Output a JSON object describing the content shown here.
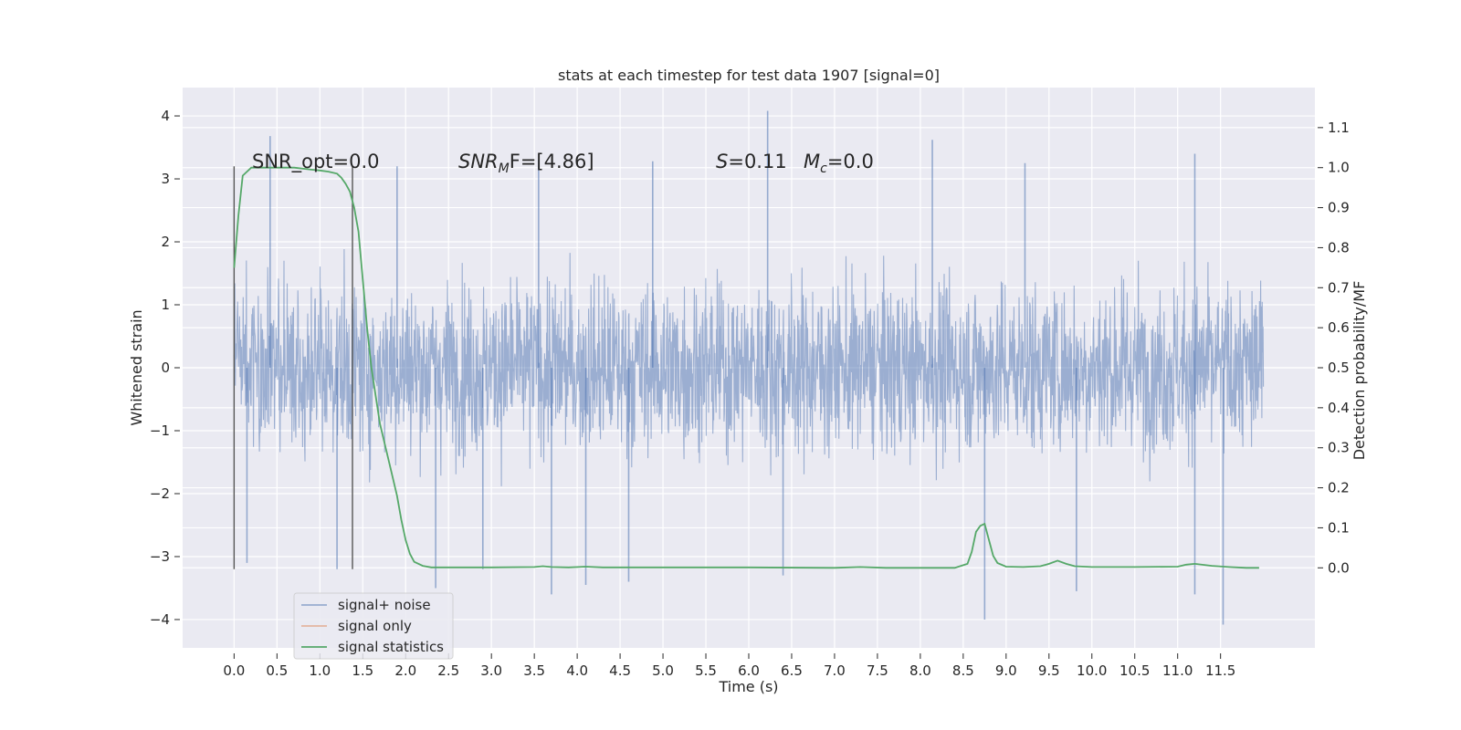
{
  "chart_data": {
    "type": "line",
    "title": "stats at each timestep for test data 1907 [signal=0]",
    "xlabel": "Time (s)",
    "ylabel": "Whitened strain",
    "y2label": "Detection probability/MF",
    "xlim": [
      -0.6,
      12.6
    ],
    "ylim": [
      -4.45,
      4.45
    ],
    "y2lim": [
      -0.2,
      1.2
    ],
    "xticks": [
      0.0,
      0.5,
      1.0,
      1.5,
      2.0,
      2.5,
      3.0,
      3.5,
      4.0,
      4.5,
      5.0,
      5.5,
      6.0,
      6.5,
      7.0,
      7.5,
      8.0,
      8.5,
      9.0,
      9.5,
      10.0,
      10.5,
      11.0,
      11.5
    ],
    "xtick_labels": [
      "0.0",
      "0.5",
      "1.0",
      "1.5",
      "2.0",
      "2.5",
      "3.0",
      "3.5",
      "4.0",
      "4.5",
      "5.0",
      "5.5",
      "6.0",
      "6.5",
      "7.0",
      "7.5",
      "8.0",
      "8.5",
      "9.0",
      "9.5",
      "10.0",
      "10.5",
      "11.0",
      "11.5"
    ],
    "yticks": [
      -4,
      -3,
      -2,
      -1,
      0,
      1,
      2,
      3,
      4
    ],
    "ytick_labels": [
      "−4",
      "−3",
      "−2",
      "−1",
      "0",
      "1",
      "2",
      "3",
      "4"
    ],
    "y2ticks": [
      0.0,
      0.1,
      0.2,
      0.3,
      0.4,
      0.5,
      0.6,
      0.7,
      0.8,
      0.9,
      1.0,
      1.1
    ],
    "y2tick_labels": [
      "0.0",
      "0.1",
      "0.2",
      "0.3",
      "0.4",
      "0.5",
      "0.6",
      "0.7",
      "0.8",
      "0.9",
      "1.0",
      "1.1"
    ],
    "grid": true,
    "legend_position": "lower-left",
    "annotations": {
      "snr_opt": "SNR_opt=0.0",
      "snr_mf_base": "SNR",
      "snr_mf_sub": "M",
      "snr_mf_rest": "F=[4.86]",
      "s_sym": "S",
      "s_val": "=0.11",
      "mc_base": "M",
      "mc_sub": "c",
      "mc_val": "=0.0"
    },
    "vlines": [
      0.0,
      1.38
    ],
    "vline_range": [
      -3.2,
      3.2
    ],
    "series": [
      {
        "name": "signal+ noise",
        "color": "#4c72b0",
        "alpha": 0.5,
        "axis": "left",
        "t_start": 0.0,
        "t_end": 12.0,
        "spread": 1.25,
        "spikes": [
          {
            "t": 0.42,
            "y": 3.68
          },
          {
            "t": 6.22,
            "y": 4.08
          },
          {
            "t": 8.14,
            "y": 3.62
          },
          {
            "t": 11.2,
            "y": 3.4
          },
          {
            "t": 4.88,
            "y": 3.28
          },
          {
            "t": 3.55,
            "y": 3.3
          },
          {
            "t": 9.22,
            "y": 3.25
          },
          {
            "t": 1.9,
            "y": 3.2
          },
          {
            "t": 8.75,
            "y": -4.0
          },
          {
            "t": 11.53,
            "y": -4.08
          },
          {
            "t": 3.7,
            "y": -3.6
          },
          {
            "t": 4.1,
            "y": -3.45
          },
          {
            "t": 2.35,
            "y": -3.5
          },
          {
            "t": 0.15,
            "y": -3.1
          },
          {
            "t": 9.82,
            "y": -3.55
          },
          {
            "t": 6.4,
            "y": -3.3
          },
          {
            "t": 4.6,
            "y": -3.4
          },
          {
            "t": 11.2,
            "y": -3.6
          },
          {
            "t": 2.9,
            "y": -3.2
          },
          {
            "t": 1.2,
            "y": -3.2
          }
        ]
      },
      {
        "name": "signal only",
        "color": "#dd8452",
        "axis": "left",
        "x": [],
        "y": []
      },
      {
        "name": "signal statistics",
        "color": "#55a868",
        "axis": "right",
        "x": [
          0.0,
          0.05,
          0.1,
          0.2,
          0.3,
          0.5,
          0.7,
          0.9,
          1.0,
          1.1,
          1.2,
          1.25,
          1.3,
          1.35,
          1.4,
          1.45,
          1.5,
          1.55,
          1.6,
          1.7,
          1.8,
          1.9,
          1.95,
          2.0,
          2.05,
          2.1,
          2.2,
          2.3,
          2.5,
          3.0,
          3.5,
          3.6,
          3.7,
          3.9,
          4.1,
          4.3,
          5.0,
          6.0,
          7.0,
          7.3,
          7.6,
          8.0,
          8.4,
          8.55,
          8.6,
          8.65,
          8.7,
          8.75,
          8.8,
          8.85,
          8.9,
          9.0,
          9.2,
          9.4,
          9.5,
          9.6,
          9.7,
          9.8,
          10.0,
          10.5,
          11.0,
          11.1,
          11.2,
          11.4,
          11.6,
          11.8,
          11.95
        ],
        "y": [
          0.75,
          0.88,
          0.98,
          1.0,
          1.0,
          1.0,
          1.0,
          0.995,
          0.993,
          0.99,
          0.985,
          0.975,
          0.96,
          0.94,
          0.9,
          0.84,
          0.72,
          0.6,
          0.5,
          0.36,
          0.27,
          0.18,
          0.12,
          0.07,
          0.035,
          0.015,
          0.005,
          0.001,
          0.001,
          0.001,
          0.002,
          0.004,
          0.002,
          0.001,
          0.003,
          0.001,
          0.001,
          0.001,
          0.0,
          0.002,
          0.0,
          0.0,
          0.0,
          0.01,
          0.04,
          0.09,
          0.105,
          0.11,
          0.07,
          0.03,
          0.012,
          0.003,
          0.002,
          0.004,
          0.01,
          0.018,
          0.01,
          0.004,
          0.002,
          0.002,
          0.003,
          0.008,
          0.01,
          0.005,
          0.002,
          0.0,
          0.0
        ]
      }
    ]
  }
}
